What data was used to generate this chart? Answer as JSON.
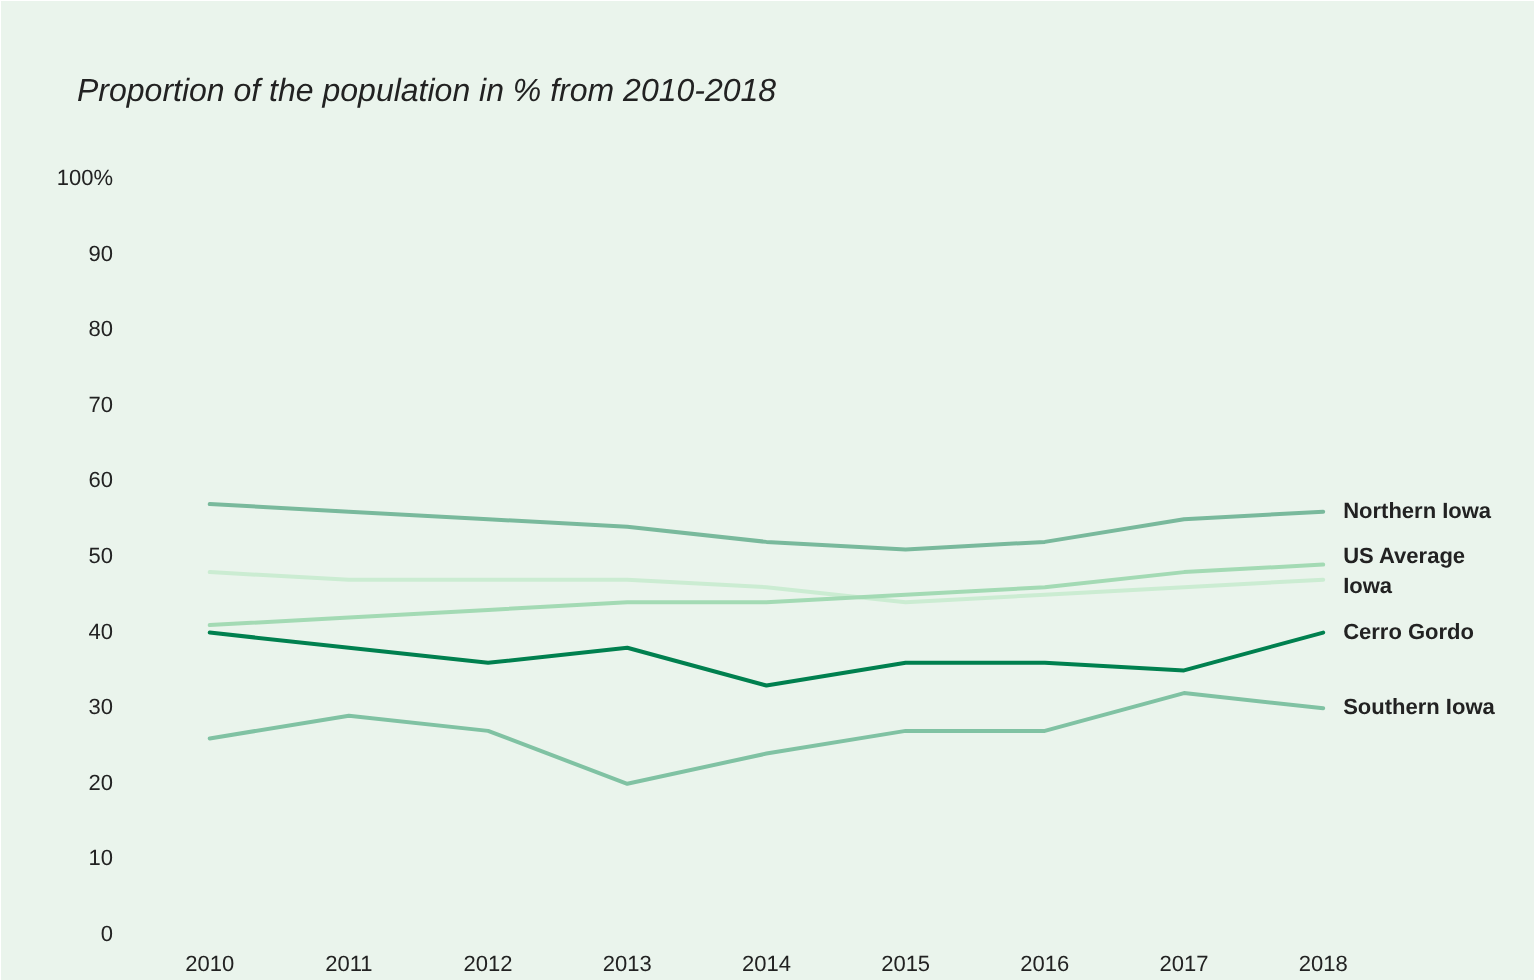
{
  "chart_data": {
    "type": "line",
    "subtitle": "Proportion of the population in % from 2010-2018",
    "categories": [
      "2010",
      "2011",
      "2012",
      "2013",
      "2014",
      "2015",
      "2016",
      "2017",
      "2018"
    ],
    "series": [
      {
        "name": "Iowa",
        "color": "#cbecd2",
        "values": [
          48,
          47,
          47,
          47,
          46,
          44,
          45,
          46,
          47
        ]
      },
      {
        "name": "US Average",
        "color": "#a3dab4",
        "values": [
          41,
          42,
          43,
          44,
          44,
          45,
          46,
          48,
          49
        ]
      },
      {
        "name": "Northern Iowa",
        "color": "#79b99c",
        "values": [
          57,
          56,
          55,
          54,
          52,
          51,
          52,
          55,
          56
        ]
      },
      {
        "name": "Southern Iowa",
        "color": "#80c2a3",
        "values": [
          26,
          29,
          27,
          20,
          24,
          27,
          27,
          32,
          30
        ]
      },
      {
        "name": "Cerro Gordo",
        "color": "#00804f",
        "values": [
          40,
          38,
          36,
          38,
          33,
          36,
          36,
          35,
          40
        ]
      }
    ],
    "ylim": [
      0,
      100
    ],
    "yticks": [
      0,
      10,
      20,
      30,
      40,
      50,
      60,
      70,
      80,
      90,
      {
        "value": 100,
        "label": "100%"
      }
    ],
    "grid": false
  }
}
